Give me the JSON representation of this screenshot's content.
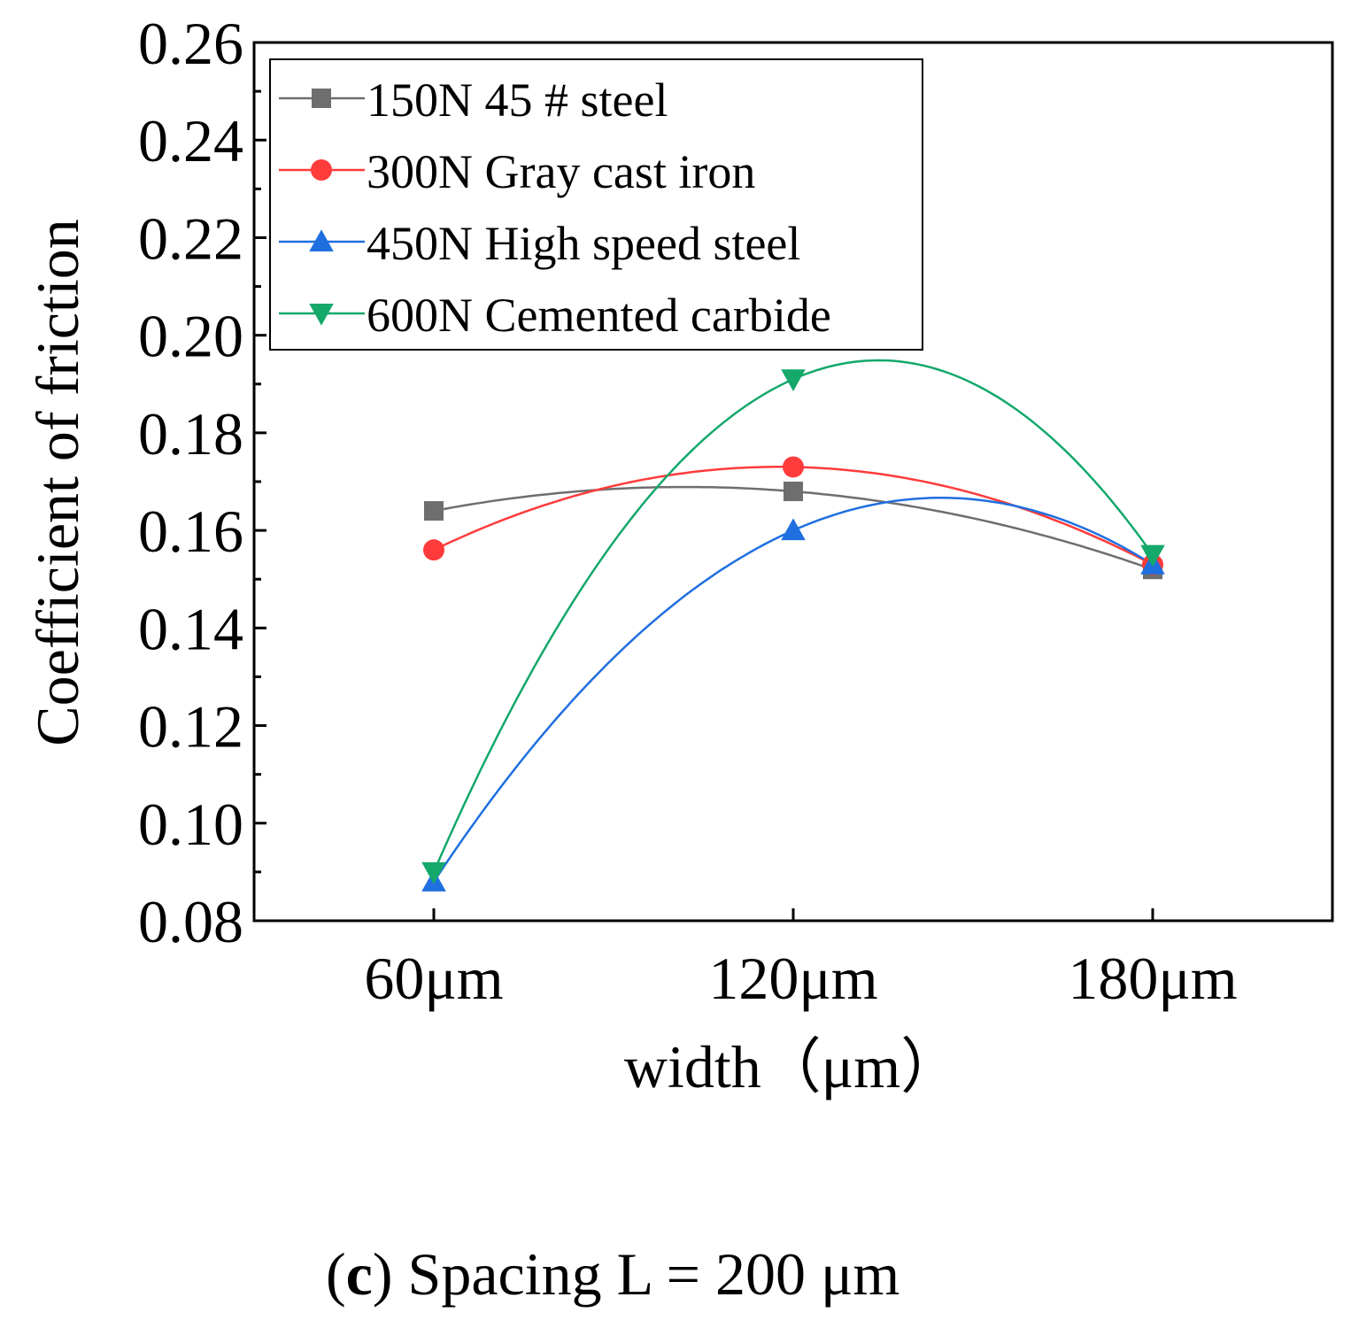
{
  "chart_data": {
    "type": "line",
    "categories": [
      "60μm",
      "120μm",
      "180μm"
    ],
    "x": [
      60,
      120,
      180
    ],
    "series": [
      {
        "name": "150N 45 # steel",
        "marker": "square",
        "color": "#6e6e6e",
        "values": [
          0.164,
          0.168,
          0.152
        ]
      },
      {
        "name": "300N Gray cast iron",
        "marker": "circle",
        "color": "#ff3b3b",
        "values": [
          0.156,
          0.173,
          0.153
        ]
      },
      {
        "name": "450N High speed steel",
        "marker": "triangle-up",
        "color": "#1f6fe0",
        "values": [
          0.088,
          0.16,
          0.153
        ]
      },
      {
        "name": "600N Cemented carbide",
        "marker": "triangle-down",
        "color": "#14a86b",
        "values": [
          0.09,
          0.191,
          0.155
        ]
      }
    ],
    "xlabel": "width（μm）",
    "ylabel": "Coefficient of friction",
    "ylim": [
      0.08,
      0.26
    ],
    "yticks": [
      "0.08",
      "0.10",
      "0.12",
      "0.14",
      "0.16",
      "0.18",
      "0.20",
      "0.22",
      "0.24",
      "0.26"
    ],
    "xlim": [
      30,
      210
    ],
    "legend": "top-left",
    "grid": false
  },
  "caption": {
    "paren_open": "(",
    "letter": "c",
    "paren_close": ")",
    "text": " Spacing L = 200 μm"
  }
}
